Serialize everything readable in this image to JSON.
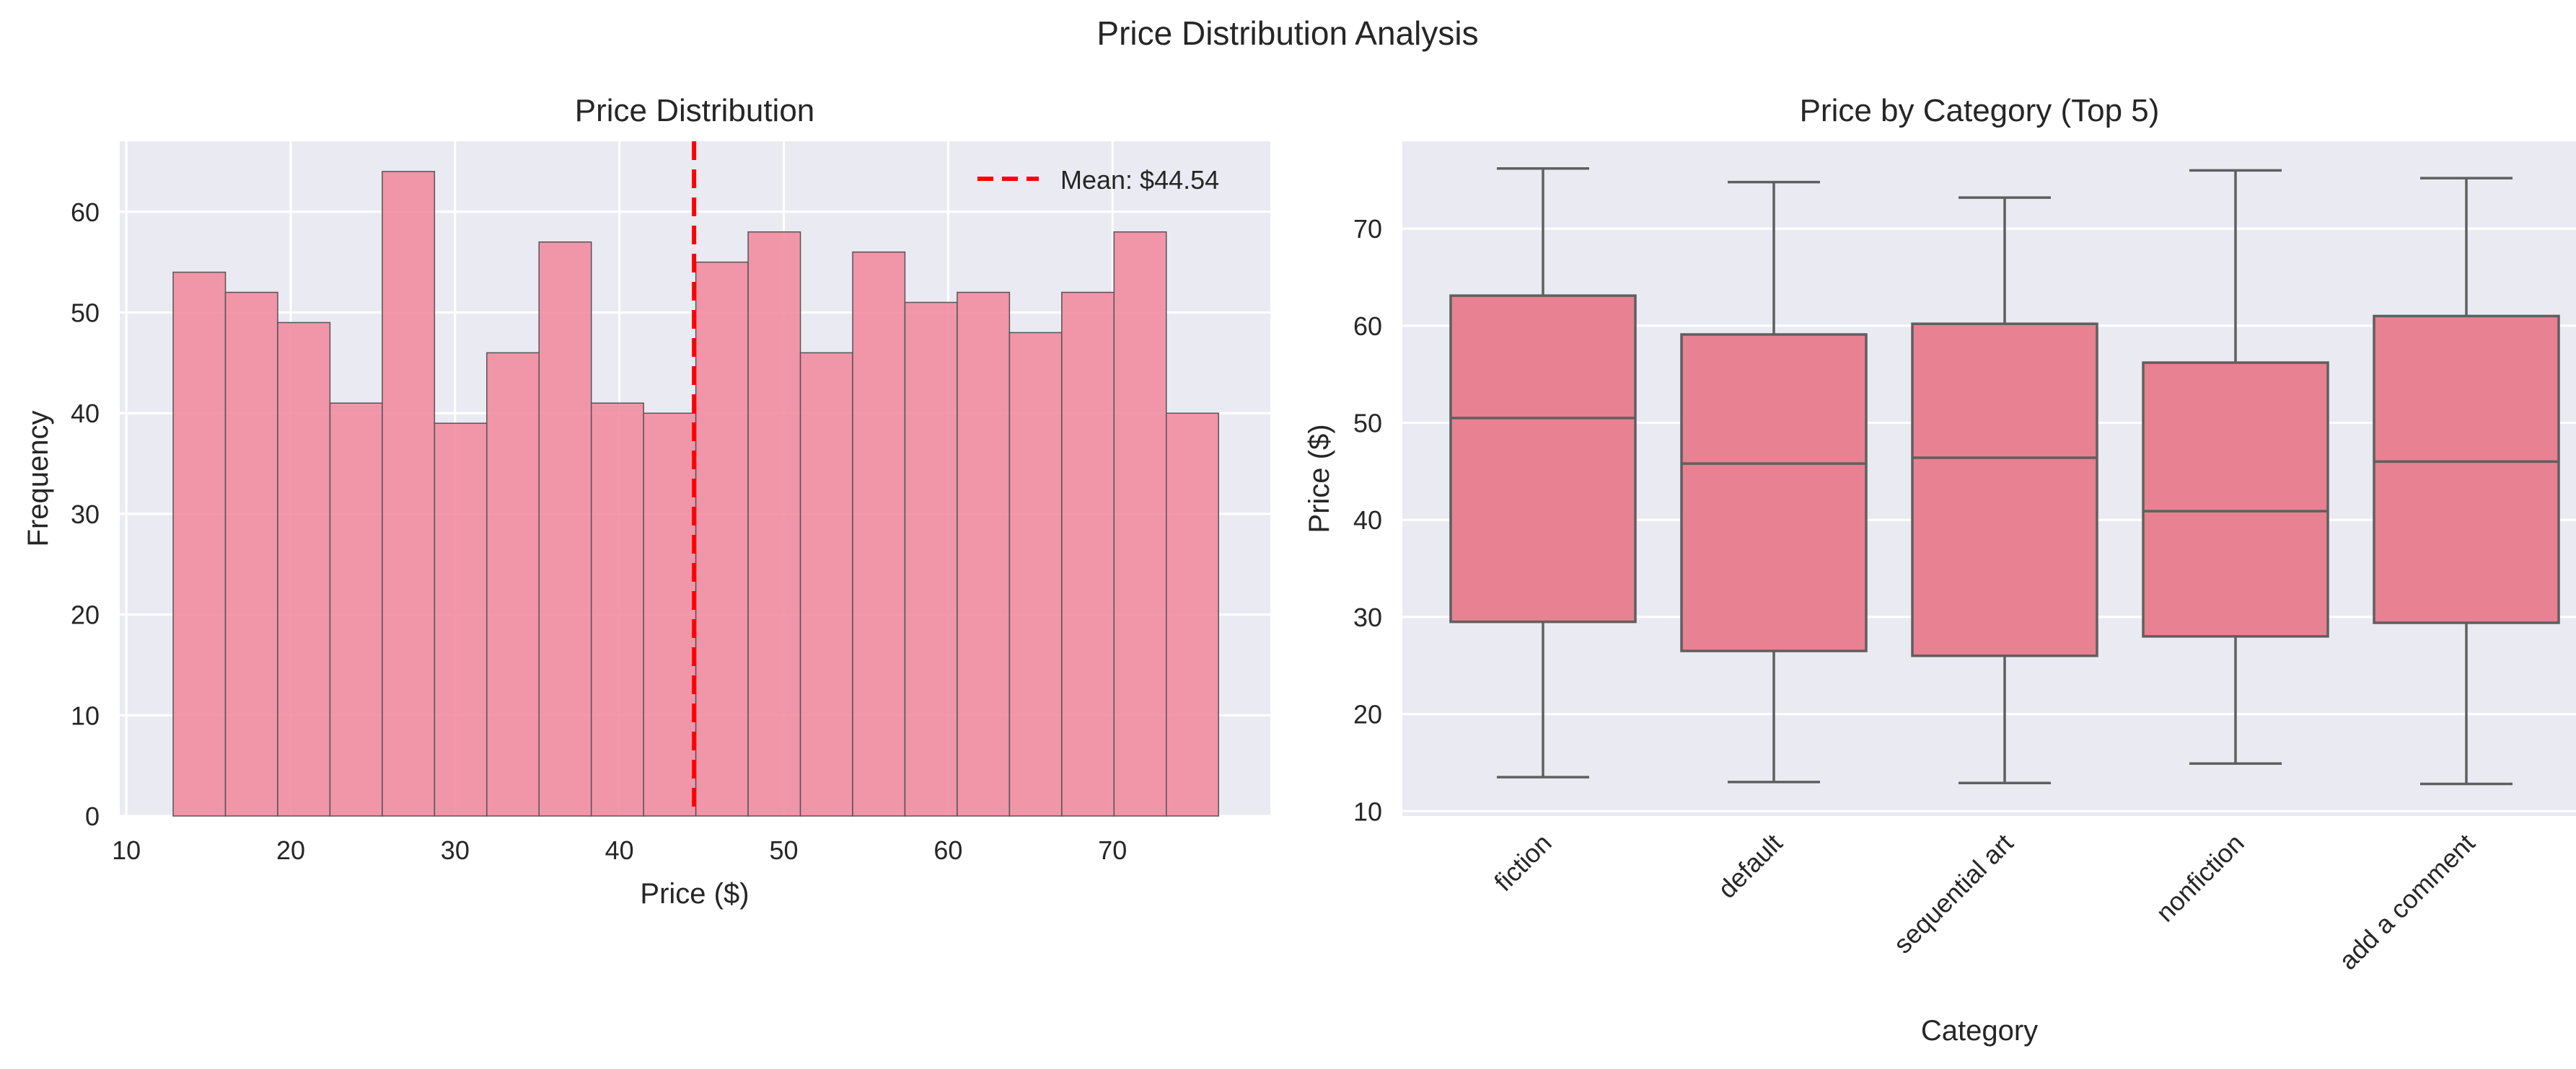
{
  "figure": {
    "suptitle": "Price Distribution Analysis",
    "background": "#ffffff",
    "axes_facecolor": "#eaeaf2",
    "grid_color": "#ffffff"
  },
  "chart_data": [
    {
      "type": "bar",
      "subtype": "histogram",
      "title": "Price Distribution",
      "xlabel": "Price ($)",
      "ylabel": "Frequency",
      "xlim": [
        9.6,
        79.6
      ],
      "ylim": [
        0,
        67
      ],
      "xticks": [
        10,
        20,
        30,
        40,
        50,
        60,
        70
      ],
      "yticks": [
        0,
        10,
        20,
        30,
        40,
        50,
        60
      ],
      "grid": true,
      "bin_start": 12.85,
      "bin_width": 3.18,
      "values": [
        54,
        52,
        49,
        41,
        64,
        39,
        46,
        57,
        41,
        40,
        55,
        58,
        46,
        56,
        51,
        52,
        48,
        52,
        58,
        40
      ],
      "bar_color": "#f28ca1",
      "edge_color": "#555555",
      "mean_line": {
        "value": 44.54,
        "label": "Mean: $44.54",
        "color": "#ff0000",
        "style": "dashed"
      },
      "legend": {
        "position": "top-right",
        "entries": [
          "Mean: $44.54"
        ]
      }
    },
    {
      "type": "box",
      "title": "Price by Category (Top 5)",
      "xlabel": "Category",
      "ylabel": "Price ($)",
      "ylim": [
        9.5,
        79
      ],
      "yticks": [
        10,
        20,
        30,
        40,
        50,
        60,
        70
      ],
      "grid": true,
      "categories": [
        "fiction",
        "default",
        "sequential art",
        "nonfiction",
        "add a comment"
      ],
      "boxes": [
        {
          "category": "fiction",
          "whisker_low": 13.5,
          "q1": 29.5,
          "median": 50.5,
          "q3": 63.1,
          "whisker_high": 76.2
        },
        {
          "category": "default",
          "whisker_low": 13.0,
          "q1": 26.5,
          "median": 45.8,
          "q3": 59.1,
          "whisker_high": 74.8
        },
        {
          "category": "sequential art",
          "whisker_low": 12.9,
          "q1": 26.0,
          "median": 46.4,
          "q3": 60.2,
          "whisker_high": 73.2
        },
        {
          "category": "nonfiction",
          "whisker_low": 14.9,
          "q1": 28.0,
          "median": 40.9,
          "q3": 56.2,
          "whisker_high": 76.0
        },
        {
          "category": "add a comment",
          "whisker_low": 12.8,
          "q1": 29.4,
          "median": 46.0,
          "q3": 61.0,
          "whisker_high": 75.2
        }
      ],
      "box_color": "#e88191",
      "line_color": "#5f5f5f"
    }
  ]
}
